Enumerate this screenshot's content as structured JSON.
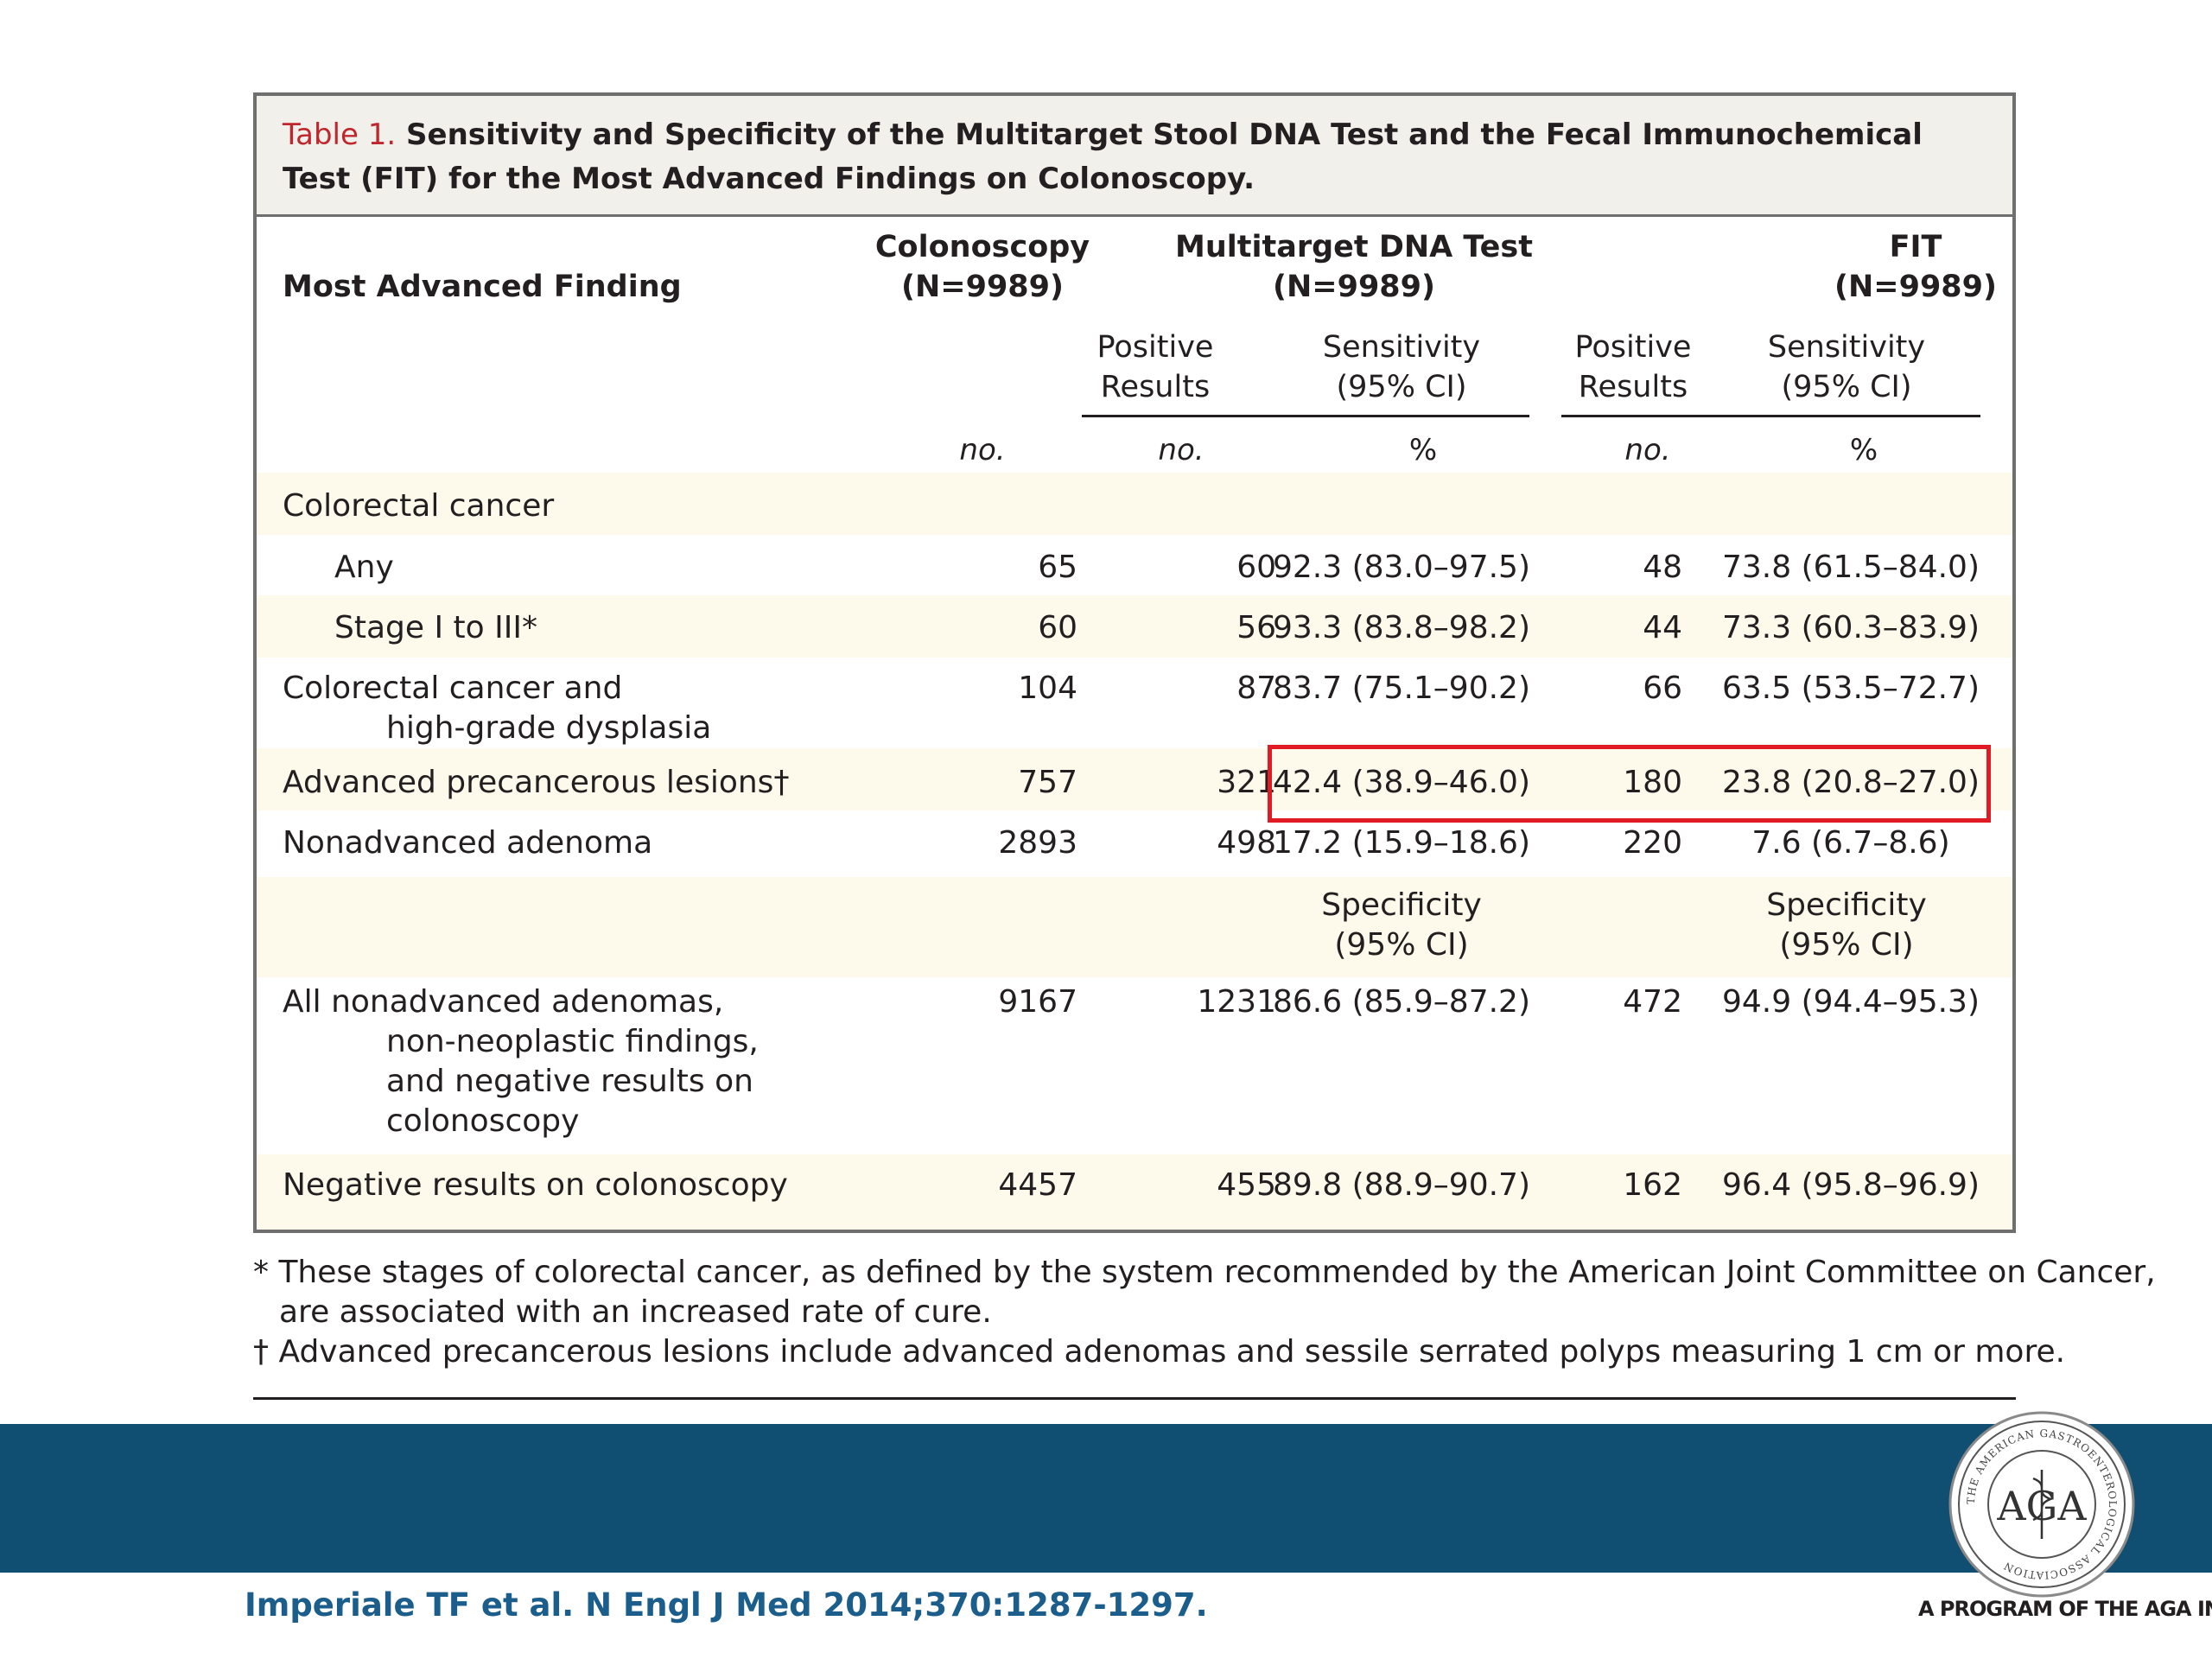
{
  "table": {
    "label": "Table 1.",
    "title": "Sensitivity and Specificity of the Multitarget Stool DNA Test and the Fecal Immunochemical Test (FIT) for the Most Advanced Findings on Colonoscopy.",
    "header": {
      "finding": "Most Advanced Finding",
      "colonoscopy": "Colonoscopy",
      "colonoscopy_n": "(N=9989)",
      "dna": "Multitarget DNA Test",
      "dna_n": "(N=9989)",
      "fit": "FIT",
      "fit_n": "(N=9989)",
      "positive_results": "Positive Results",
      "sensitivity": "Sensitivity (95% CI)",
      "units_no": "no.",
      "units_pct": "%"
    },
    "rows": [
      {
        "label": "Colorectal cancer",
        "colonoscopy": "",
        "dna_pos": "",
        "dna_sens": "",
        "fit_pos": "",
        "fit_sens": ""
      },
      {
        "label": "Any",
        "colonoscopy": "65",
        "dna_pos": "60",
        "dna_sens": "92.3 (83.0–97.5)",
        "fit_pos": "48",
        "fit_sens": "73.8 (61.5–84.0)"
      },
      {
        "label": "Stage I to III*",
        "colonoscopy": "60",
        "dna_pos": "56",
        "dna_sens": "93.3 (83.8–98.2)",
        "fit_pos": "44",
        "fit_sens": "73.3 (60.3–83.9)"
      },
      {
        "label": "Colorectal cancer and",
        "label_cont": "high-grade dysplasia",
        "colonoscopy": "104",
        "dna_pos": "87",
        "dna_sens": "83.7 (75.1–90.2)",
        "fit_pos": "66",
        "fit_sens": "63.5 (53.5–72.7)"
      },
      {
        "label": "Advanced precancerous lesions†",
        "colonoscopy": "757",
        "dna_pos": "321",
        "dna_sens": "42.4 (38.9–46.0)",
        "fit_pos": "180",
        "fit_sens": "23.8 (20.8–27.0)"
      },
      {
        "label": "Nonadvanced adenoma",
        "colonoscopy": "2893",
        "dna_pos": "498",
        "dna_sens": "17.2 (15.9–18.6)",
        "fit_pos": "220",
        "fit_sens": "7.6 (6.7–8.6)"
      },
      {
        "label": "All nonadvanced adenomas,",
        "label_cont": "non-neoplastic findings,",
        "label_cont2": "and negative results on",
        "label_cont3": "colonoscopy",
        "colonoscopy": "9167",
        "dna_pos": "1231",
        "dna_sens": "86.6 (85.9–87.2)",
        "fit_pos": "472",
        "fit_sens": "94.9 (94.4–95.3)"
      },
      {
        "label": "Negative results on colonoscopy",
        "colonoscopy": "4457",
        "dna_pos": "455",
        "dna_sens": "89.8 (88.9–90.7)",
        "fit_pos": "162",
        "fit_sens": "96.4 (95.8–96.9)"
      }
    ],
    "specificity_header": "Specificity (95% CI)"
  },
  "footnotes": {
    "star_line1": "* These stages of colorectal cancer, as defined by the system recommended by the American Joint Committee on Cancer,",
    "star_line2": "are associated with an increased rate of cure.",
    "dagger": "† Advanced precancerous lesions include advanced adenomas and sessile serrated polyps measuring 1 cm or more."
  },
  "footer": {
    "citation": "Imperiale TF et al. N Engl J Med 2014;370:1287-1297.",
    "seal_text": "THE AMERICAN GASTROENTEROLOGICAL ASSOCIATION",
    "tagline": "A PROGRAM OF THE AGA INSTITUTE"
  },
  "colors": {
    "footer_band": "#104f72",
    "row_band": "#fdfaeb",
    "highlight": "#e01b24",
    "table_label": "#c0272d",
    "citation": "#1b5e8c"
  }
}
